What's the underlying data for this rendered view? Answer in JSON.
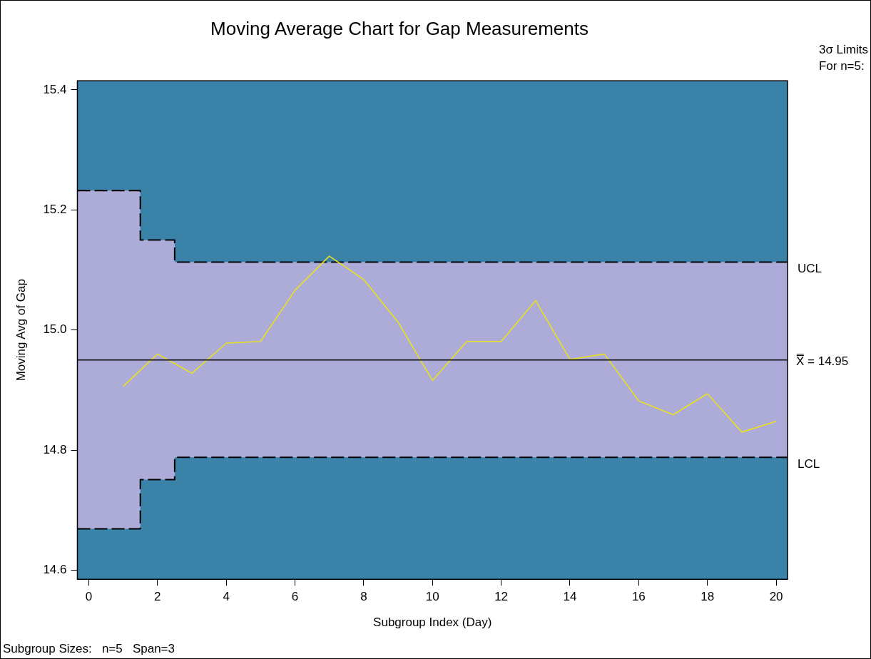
{
  "chart_data": {
    "type": "line",
    "title": "Moving Average Chart for Gap Measurements",
    "xlabel": "Subgroup Index (Day)",
    "ylabel": "Moving Avg of Gap",
    "x": [
      1,
      2,
      3,
      4,
      5,
      6,
      7,
      8,
      9,
      10,
      11,
      12,
      13,
      14,
      15,
      16,
      17,
      18,
      19,
      20
    ],
    "series": [
      {
        "name": "UCL",
        "type": "step",
        "color": "#000000",
        "line_style": "dashed",
        "x": [
          -0.33,
          1.5,
          2.5,
          20.33
        ],
        "values": [
          15.232,
          15.15,
          15.113,
          15.113
        ],
        "lower": [
          14.669,
          14.751,
          14.788,
          14.788
        ],
        "upper": [
          15.232,
          15.15,
          15.113,
          15.113
        ]
      },
      {
        "name": "LCL",
        "type": "step",
        "color": "#000000",
        "line_style": "dashed",
        "x": [
          -0.33,
          1.5,
          2.5,
          20.33
        ],
        "values": [
          14.669,
          14.751,
          14.788,
          14.788
        ]
      },
      {
        "color": "#e8e020",
        "line_style": "solid",
        "values": [
          14.906,
          14.96,
          14.928,
          14.978,
          14.981,
          15.066,
          15.123,
          15.084,
          15.013,
          14.916,
          14.981,
          14.981,
          15.049,
          14.951,
          14.96,
          14.882,
          14.859,
          14.894,
          14.83,
          14.848
        ]
      }
    ],
    "ref_lines": [
      {
        "axis": "y",
        "value": 14.95,
        "label": "X̿ = 14.95",
        "color": "#000000"
      }
    ],
    "xlim": [
      -0.33,
      20.33
    ],
    "xticks": [
      0,
      2,
      4,
      6,
      8,
      10,
      12,
      14,
      16,
      18,
      20
    ],
    "ylim": [
      14.585,
      15.415
    ],
    "yticks": [
      14.6,
      14.8,
      {
        "value": 15,
        "label": "15.0"
      },
      15.2,
      15.4
    ],
    "grid": false,
    "legend": false,
    "marker": "none",
    "annotations": [
      "3σ Limits",
      "For n=5:",
      "Subgroup Sizes:   n=5   Span=3"
    ]
  }
}
